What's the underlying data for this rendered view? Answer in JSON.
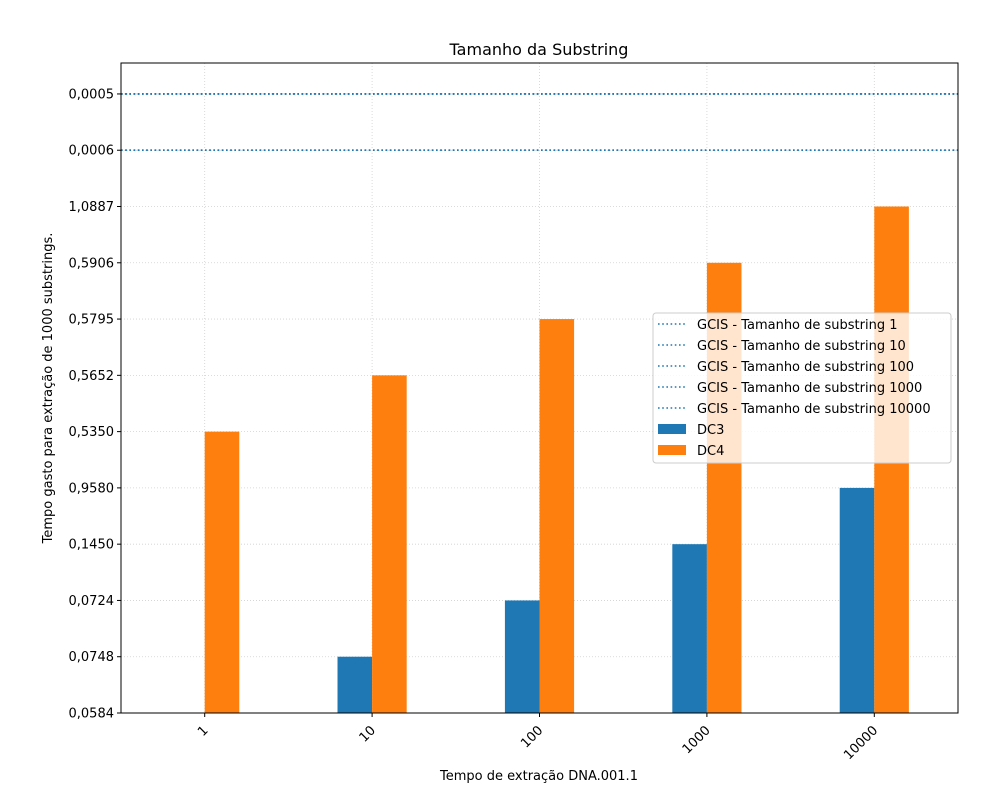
{
  "chart_data": {
    "type": "bar",
    "title": "Tamanho da Substring",
    "xlabel": "Tempo de extração DNA.001.1",
    "ylabel": "Tempo gasto para extração de 1000 substrings.",
    "categories": [
      "1",
      "10",
      "100",
      "1000",
      "10000"
    ],
    "y_tick_labels": [
      "0,0584",
      "0,0748",
      "0,0724",
      "0,1450",
      "0,9580",
      "0,5350",
      "0,5652",
      "0,5795",
      "0,5906",
      "1,0887",
      "0,0006",
      "0,0005"
    ],
    "series": [
      {
        "name": "DC3",
        "color": "#1f77b4",
        "values": [
          0,
          1,
          2,
          3,
          4
        ]
      },
      {
        "name": "DC4",
        "color": "#ff7f0e",
        "values": [
          5,
          6,
          7,
          8,
          9
        ]
      }
    ],
    "reference_lines": [
      {
        "name": "GCIS - Tamanho de substring 1",
        "value": 11,
        "color": "#1f77b4",
        "style": "dotted"
      },
      {
        "name": "GCIS - Tamanho de substring 10",
        "value": 11,
        "color": "#1f77b4",
        "style": "dotted"
      },
      {
        "name": "GCIS - Tamanho de substring 100",
        "value": 11,
        "color": "#1f77b4",
        "style": "dotted"
      },
      {
        "name": "GCIS - Tamanho de substring 1000",
        "value": 10,
        "color": "#1f77b4",
        "style": "dotted"
      },
      {
        "name": "GCIS - Tamanho de substring 10000",
        "value": 10,
        "color": "#1f77b4",
        "style": "dotted"
      }
    ],
    "ylim": [
      0,
      11.55
    ],
    "grid": true,
    "legend_position": "right"
  }
}
